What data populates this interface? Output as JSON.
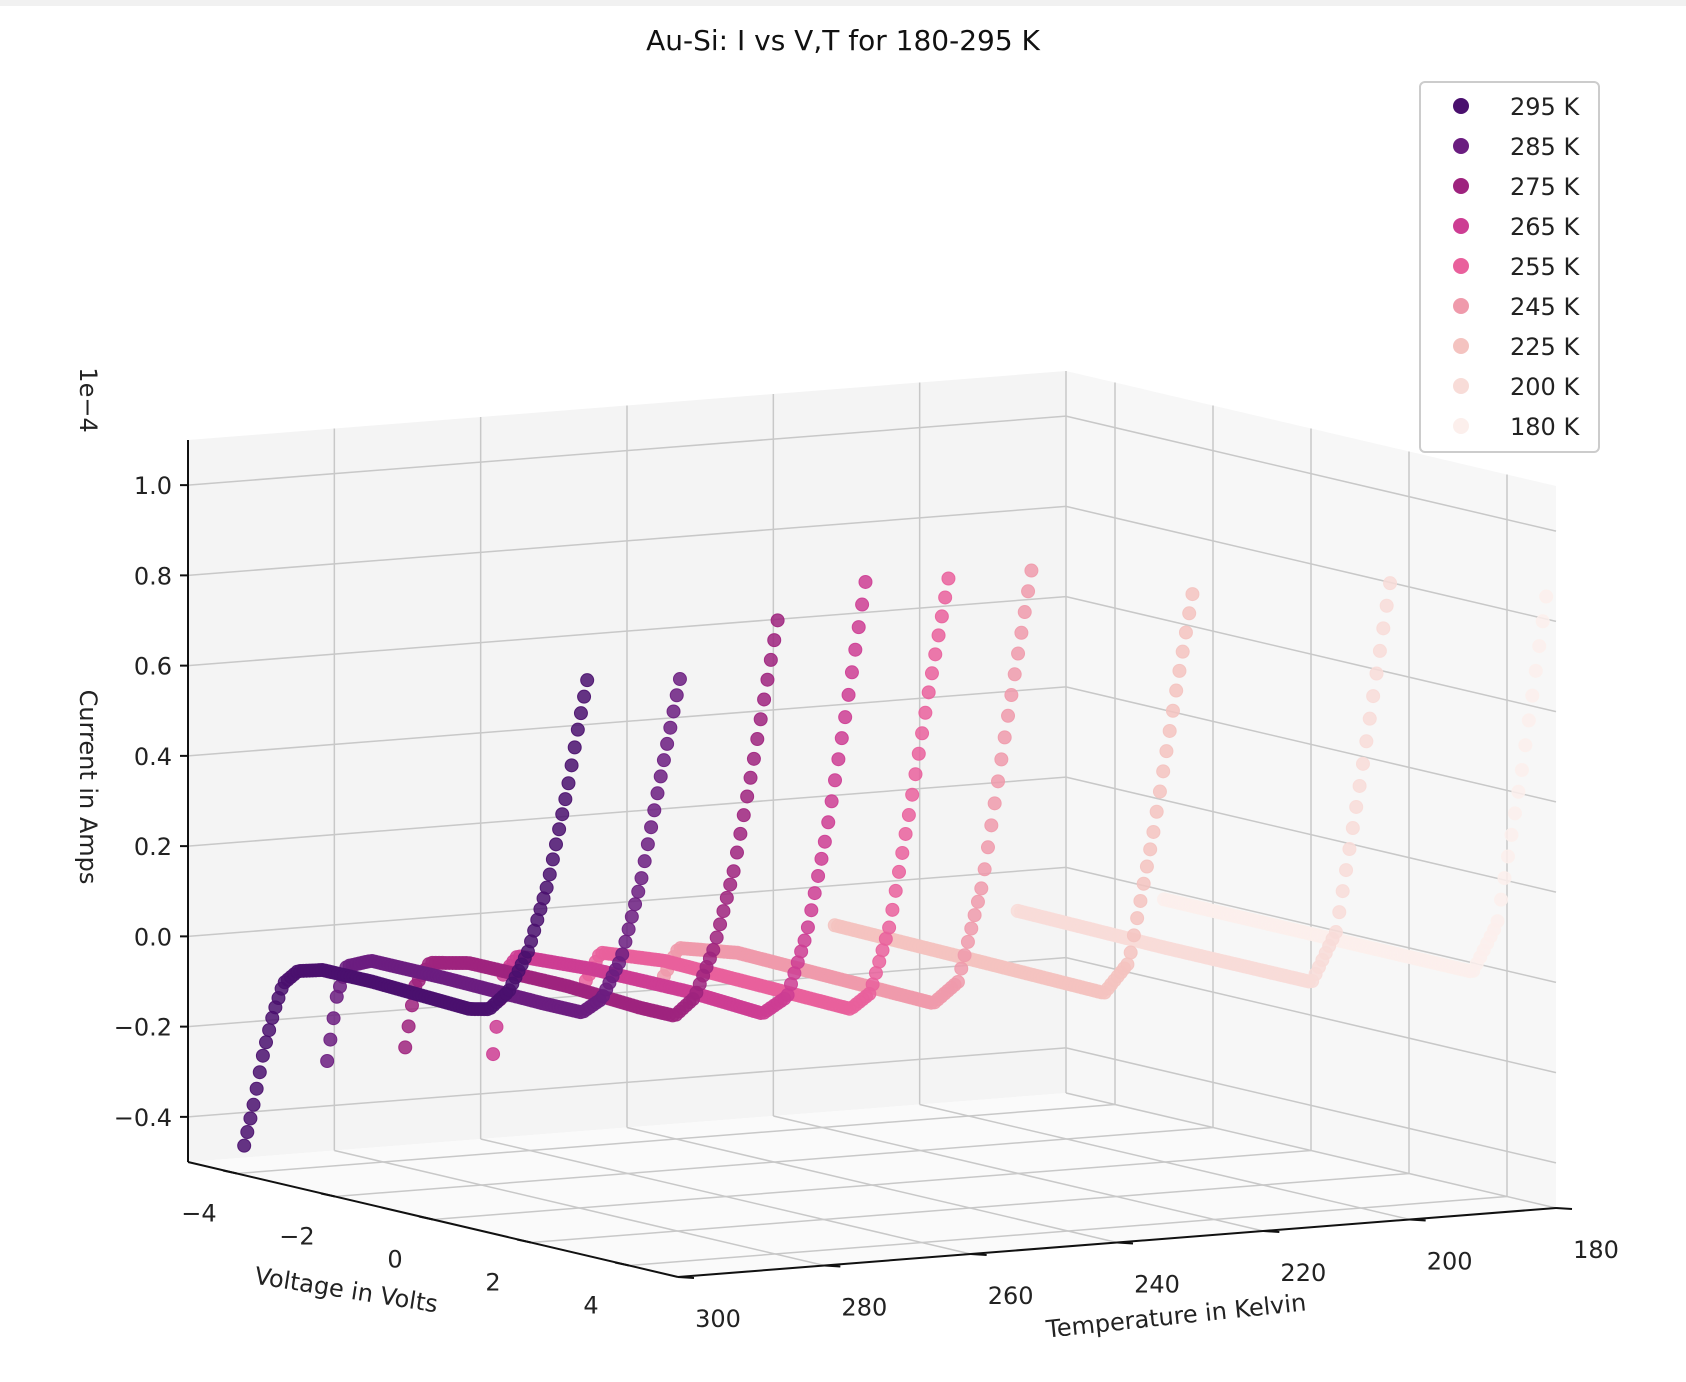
{
  "chart_data": {
    "type": "scatter",
    "title": "Au-Si: I vs V,T for 180-295 K",
    "xlabel": "Voltage in Volts",
    "ylabel": "Temperature in Kelvin",
    "zlabel": "Current in Amps",
    "z_offset_text": "1e−4",
    "x_ticks": [
      "−4",
      "−2",
      "0",
      "2",
      "4"
    ],
    "y_ticks": [
      "300",
      "280",
      "260",
      "240",
      "220",
      "200",
      "180"
    ],
    "z_ticks": [
      "−0.4",
      "−0.2",
      "0.0",
      "0.2",
      "0.4",
      "0.6",
      "0.8",
      "1.0"
    ],
    "xlim": [
      -5,
      5
    ],
    "ylim": [
      180,
      300
    ],
    "zlim": [
      -0.5,
      1.1
    ],
    "z_scale": "1e-4",
    "grid": true,
    "legend_position": "top-right",
    "legend": [
      {
        "label": "295 K",
        "color": "#4a106e"
      },
      {
        "label": "285 K",
        "color": "#6b1d80"
      },
      {
        "label": "275 K",
        "color": "#9e237e"
      },
      {
        "label": "265 K",
        "color": "#cd3d93"
      },
      {
        "label": "255 K",
        "color": "#e9609c"
      },
      {
        "label": "245 K",
        "color": "#ef9aab"
      },
      {
        "label": "225 K",
        "color": "#f4c3c0"
      },
      {
        "label": "200 K",
        "color": "#f8dcd8"
      },
      {
        "label": "180 K",
        "color": "#fcefec"
      }
    ],
    "series": [
      {
        "name": "295 K",
        "temperature": 295,
        "color": "#4a106e",
        "v_start": -4.6,
        "v_end": 2.4,
        "points": [
          [
            -4.6,
            -0.46
          ],
          [
            -4.4,
            -0.36
          ],
          [
            -4.2,
            -0.24
          ],
          [
            -4.0,
            -0.15
          ],
          [
            -3.8,
            -0.08
          ],
          [
            -3.5,
            -0.045
          ],
          [
            -3.0,
            -0.03
          ],
          [
            -2.0,
            -0.03
          ],
          [
            -1.0,
            -0.035
          ],
          [
            0.0,
            -0.04
          ],
          [
            0.4,
            -0.03
          ],
          [
            0.8,
            0.02
          ],
          [
            1.2,
            0.12
          ],
          [
            1.6,
            0.28
          ],
          [
            2.0,
            0.5
          ],
          [
            2.2,
            0.63
          ],
          [
            2.4,
            0.75
          ]
        ]
      },
      {
        "name": "285 K",
        "temperature": 285,
        "color": "#6b1d80",
        "v_start": -4.4,
        "v_end": 2.8,
        "points": [
          [
            -4.4,
            -0.28
          ],
          [
            -4.2,
            -0.13
          ],
          [
            -4.0,
            -0.06
          ],
          [
            -3.5,
            -0.035
          ],
          [
            -2.0,
            -0.035
          ],
          [
            0.0,
            -0.04
          ],
          [
            0.8,
            -0.04
          ],
          [
            1.2,
            0.0
          ],
          [
            1.6,
            0.1
          ],
          [
            2.0,
            0.28
          ],
          [
            2.4,
            0.52
          ],
          [
            2.8,
            0.75
          ]
        ]
      },
      {
        "name": "275 K",
        "temperature": 275,
        "color": "#9e237e",
        "v_start": -4.3,
        "v_end": 3.3,
        "points": [
          [
            -4.3,
            -0.26
          ],
          [
            -4.1,
            -0.12
          ],
          [
            -3.8,
            -0.06
          ],
          [
            -3.0,
            -0.04
          ],
          [
            -1.0,
            -0.04
          ],
          [
            0.5,
            -0.05
          ],
          [
            1.2,
            -0.05
          ],
          [
            1.6,
            0.0
          ],
          [
            2.0,
            0.12
          ],
          [
            2.4,
            0.3
          ],
          [
            2.8,
            0.55
          ],
          [
            3.3,
            0.88
          ]
        ]
      },
      {
        "name": "265 K",
        "temperature": 265,
        "color": "#cd3d93",
        "v_start": -4.0,
        "v_end": 3.6,
        "points": [
          [
            -4.0,
            -0.28
          ],
          [
            -3.8,
            -0.1
          ],
          [
            -3.5,
            -0.05
          ],
          [
            -2.0,
            -0.04
          ],
          [
            0.0,
            -0.04
          ],
          [
            1.5,
            -0.05
          ],
          [
            2.0,
            0.0
          ],
          [
            2.4,
            0.15
          ],
          [
            2.8,
            0.38
          ],
          [
            3.2,
            0.66
          ],
          [
            3.6,
            0.96
          ]
        ]
      },
      {
        "name": "255 K",
        "temperature": 255,
        "color": "#e9609c",
        "v_start": -3.6,
        "v_end": 3.8,
        "points": [
          [
            -3.6,
            -0.12
          ],
          [
            -3.3,
            -0.05
          ],
          [
            -2.0,
            -0.035
          ],
          [
            0.0,
            -0.04
          ],
          [
            1.8,
            -0.045
          ],
          [
            2.2,
            0.0
          ],
          [
            2.6,
            0.16
          ],
          [
            3.0,
            0.42
          ],
          [
            3.4,
            0.7
          ],
          [
            3.8,
            0.96
          ]
        ]
      },
      {
        "name": "245 K",
        "temperature": 245,
        "color": "#ef9aab",
        "v_start": -3.5,
        "v_end": 4.0,
        "points": [
          [
            -3.5,
            -0.12
          ],
          [
            -3.2,
            -0.05
          ],
          [
            -2.0,
            -0.03
          ],
          [
            0.0,
            -0.035
          ],
          [
            2.0,
            -0.04
          ],
          [
            2.5,
            0.02
          ],
          [
            3.0,
            0.25
          ],
          [
            3.5,
            0.62
          ],
          [
            4.0,
            0.97
          ]
        ]
      },
      {
        "name": "225 K",
        "temperature": 225,
        "color": "#f4c3c0",
        "v_start": -3.0,
        "v_end": 4.3,
        "points": [
          [
            -3.0,
            -0.02
          ],
          [
            0.0,
            -0.025
          ],
          [
            2.5,
            -0.03
          ],
          [
            3.0,
            0.05
          ],
          [
            3.5,
            0.35
          ],
          [
            4.0,
            0.7
          ],
          [
            4.3,
            0.9
          ]
        ]
      },
      {
        "name": "200 K",
        "temperature": 200,
        "color": "#f8dcd8",
        "v_start": -3.0,
        "v_end": 4.6,
        "points": [
          [
            -3.0,
            -0.02
          ],
          [
            0.0,
            -0.025
          ],
          [
            3.0,
            -0.025
          ],
          [
            3.5,
            0.1
          ],
          [
            4.0,
            0.45
          ],
          [
            4.6,
            0.9
          ]
        ]
      },
      {
        "name": "180 K",
        "temperature": 180,
        "color": "#fcefec",
        "v_start": -3.0,
        "v_end": 4.8,
        "points": [
          [
            -3.0,
            -0.02
          ],
          [
            0.0,
            -0.02
          ],
          [
            3.3,
            -0.02
          ],
          [
            3.8,
            0.1
          ],
          [
            4.3,
            0.45
          ],
          [
            4.8,
            0.85
          ]
        ]
      }
    ]
  }
}
